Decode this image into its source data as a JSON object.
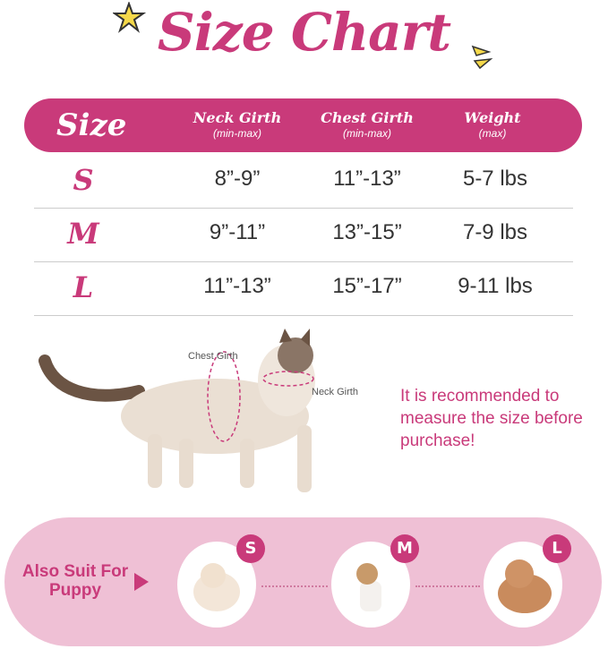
{
  "title": "Size Chart",
  "accent_color": "#c93a7a",
  "band_color": "#efc0d5",
  "table": {
    "headers": [
      {
        "label": "Size",
        "sub": ""
      },
      {
        "label": "Neck Girth",
        "sub": "(min-max)"
      },
      {
        "label": "Chest Girth",
        "sub": "(min-max)"
      },
      {
        "label": "Weight",
        "sub": "(max)"
      }
    ],
    "rows": [
      {
        "size": "S",
        "neck": "8”-9”",
        "chest": "11”-13”",
        "weight": "5-7 lbs"
      },
      {
        "size": "M",
        "neck": "9”-11”",
        "chest": "13”-15”",
        "weight": "7-9 lbs"
      },
      {
        "size": "L",
        "neck": "11”-13”",
        "chest": "15”-17”",
        "weight": "9-11 lbs"
      }
    ]
  },
  "diagram": {
    "chest_label": "Chest Girth",
    "neck_label": "Neck Girth"
  },
  "recommendation": "It is recommended to measure the size before purchase!",
  "puppy": {
    "label": "Also Suit For Puppy",
    "sizes": [
      "S",
      "M",
      "L"
    ]
  }
}
